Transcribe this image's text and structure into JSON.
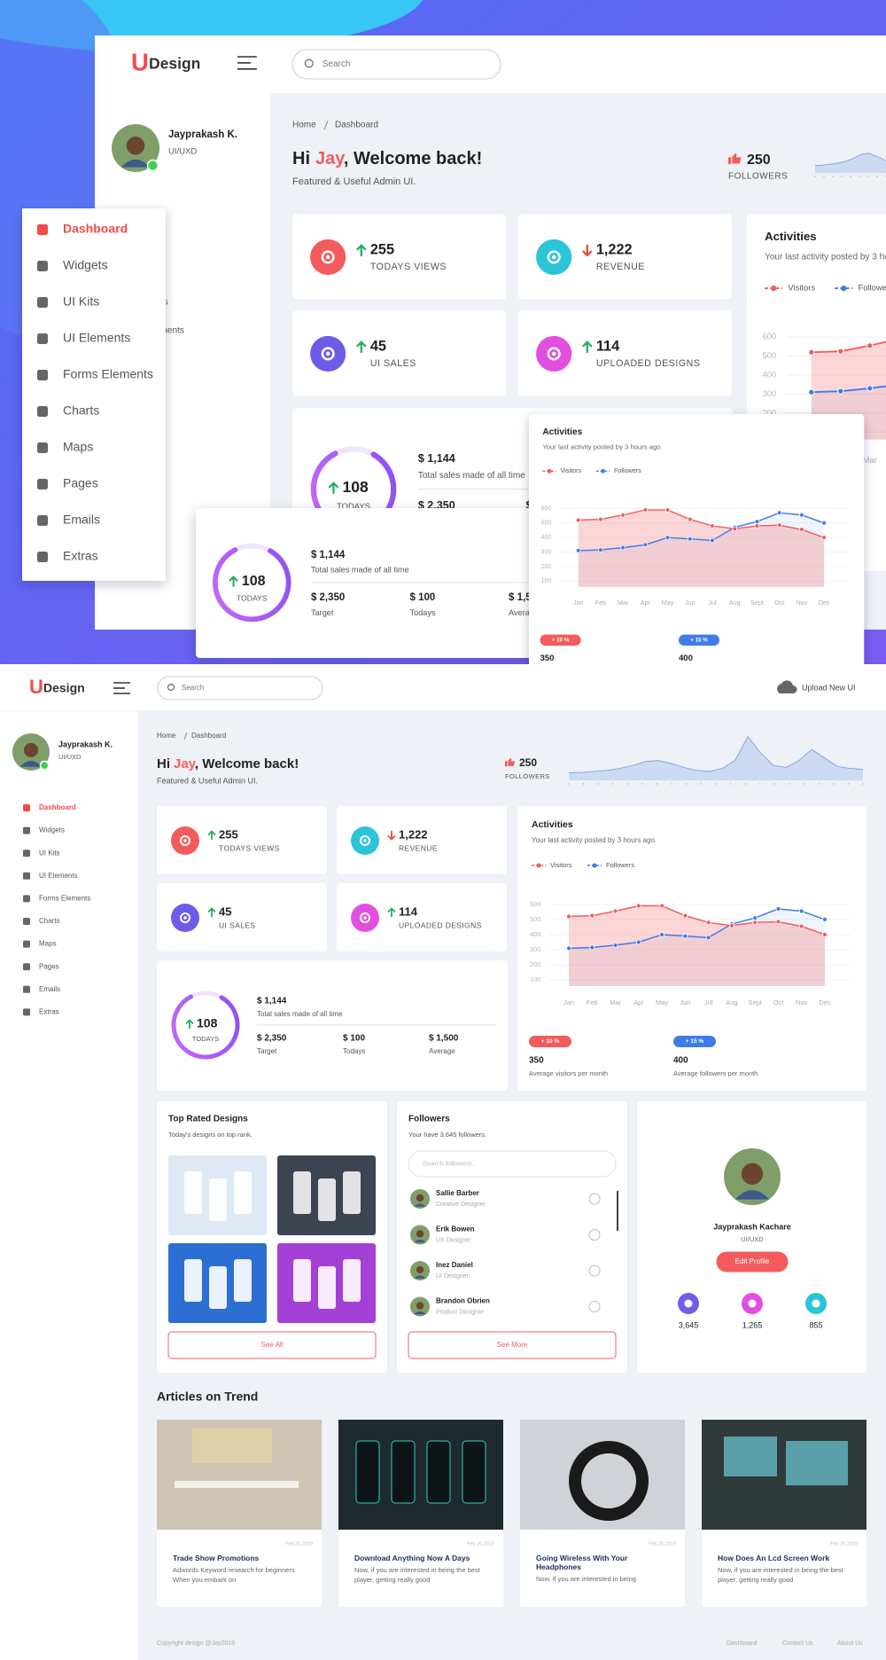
{
  "brand": {
    "logo": "U",
    "name": "Design"
  },
  "search": "Search",
  "upload": "Upload New UI",
  "user": {
    "name": "Jayprakash K.",
    "role": "UI/UXD"
  },
  "menu": [
    "Dashboard",
    "Widgets",
    "UI Kits",
    "UI Elements",
    "Forms Elements",
    "Charts",
    "Maps",
    "Pages",
    "Emails",
    "Extras"
  ],
  "breadcrumb": [
    "Home",
    "Dashboard"
  ],
  "greeting": {
    "hi": "Hi",
    "name": "Jay",
    "rest": ", Welcome back!",
    "subtitle": "Featured & Useful Admin UI."
  },
  "followers_count": {
    "value": "250",
    "label": "FOLLOWERS"
  },
  "stats": [
    {
      "value": "255",
      "label": "TODAYS VIEWS",
      "trend": "up",
      "color": "#f45b5b"
    },
    {
      "value": "1,222",
      "label": "REVENUE",
      "trend": "down",
      "color": "#2bc4d8"
    },
    {
      "value": "45",
      "label": "UI SALES",
      "trend": "up",
      "color": "#6d5ce8"
    },
    {
      "value": "114",
      "label": "UPLOADED DESIGNS",
      "trend": "up",
      "color": "#e24fe0"
    }
  ],
  "sales": {
    "progress": "108",
    "progress_label": "TODAYS",
    "total": "$ 1,144",
    "total_label": "Total sales made of all time",
    "items": [
      {
        "value": "$ 2,350",
        "label": "Target"
      },
      {
        "value": "$ 100",
        "label": "Todays"
      },
      {
        "value": "$ 1,500",
        "label": "Average"
      }
    ]
  },
  "activity_summary": [
    {
      "badge": "+ 10 %",
      "value": "350",
      "label": "Average visitors per month",
      "color": "#f25c5c"
    },
    {
      "badge": "+ 15 %",
      "value": "400",
      "label": "Average followers per month",
      "color": "#3f7be8"
    }
  ],
  "top_rated": {
    "title": "Top Rated Designs",
    "subtitle": "Today's designs on top rank.",
    "button": "See All"
  },
  "followers": {
    "title": "Followers",
    "subtitle": "Your have 3,645 followers.",
    "search": "Search followers..",
    "people": [
      {
        "name": "Sallie Barber",
        "role": "Creative Designer"
      },
      {
        "name": "Erik Bowen",
        "role": "UX Designer"
      },
      {
        "name": "Inez Daniel",
        "role": "UI Designer"
      },
      {
        "name": "Brandon Obrien",
        "role": "Product Designer"
      }
    ],
    "button": "See More"
  },
  "profile": {
    "name": "Jayprakash Kachare",
    "role": "UI/UXD",
    "button": "Edit Profile",
    "stats": [
      {
        "value": "3,645",
        "color": "#6f5fe6"
      },
      {
        "value": "1,265",
        "color": "#e24fe0"
      },
      {
        "value": "855",
        "color": "#2bc4d8"
      }
    ]
  },
  "articles": {
    "title": "Articles on Trend",
    "items": [
      {
        "date": "Feb 20,2019",
        "title": "Trade Show Promotions",
        "text": "Adwords Keyword research for beginners   When you embark on"
      },
      {
        "date": "Feb 20,2019",
        "title": "Download Anything Now A Days",
        "text": "Now, if you are interested in being the best player, getting really good"
      },
      {
        "date": "Feb 20,2019",
        "title": "Going Wireless With Your Headphones",
        "text": "Now, if you are interested in being"
      },
      {
        "date": "Feb 20,2019",
        "title": "How Does An Lcd Screen Work",
        "text": "Now, if you are interested in being the best player, getting really good"
      }
    ]
  },
  "footer": {
    "copyright": "Copyright design @Jay2019",
    "links": [
      "Dashboard",
      "Contact Us",
      "About Us"
    ]
  },
  "chart_data": [
    {
      "type": "line",
      "title": "Activities",
      "subtitle": "Your last activity posted by 3 hours ago.",
      "categories": [
        "Jan",
        "Feb",
        "Mar",
        "Apr",
        "May",
        "Jun",
        "Jul",
        "Aug",
        "Sept",
        "Oct",
        "Nov",
        "Dec"
      ],
      "series": [
        {
          "name": "Visitors",
          "color": "#f25c5c",
          "values": [
            520,
            525,
            555,
            590,
            590,
            525,
            480,
            460,
            480,
            485,
            455,
            400
          ]
        },
        {
          "name": "Followers",
          "color": "#3f7be8",
          "values": [
            310,
            315,
            330,
            350,
            400,
            390,
            380,
            470,
            510,
            570,
            555,
            500
          ]
        }
      ],
      "ylim": [
        60,
        640
      ],
      "yticks": [
        100,
        200,
        300,
        400,
        500,
        600
      ],
      "grid": true
    },
    {
      "type": "area",
      "values": [
        15,
        16,
        18,
        20,
        24,
        30,
        38,
        40,
        34,
        26,
        20,
        18,
        24,
        40,
        88,
        55,
        30,
        26,
        40,
        62,
        45,
        28,
        24,
        22
      ],
      "ylim": [
        0,
        100
      ],
      "color": "#7fa8e8"
    }
  ]
}
